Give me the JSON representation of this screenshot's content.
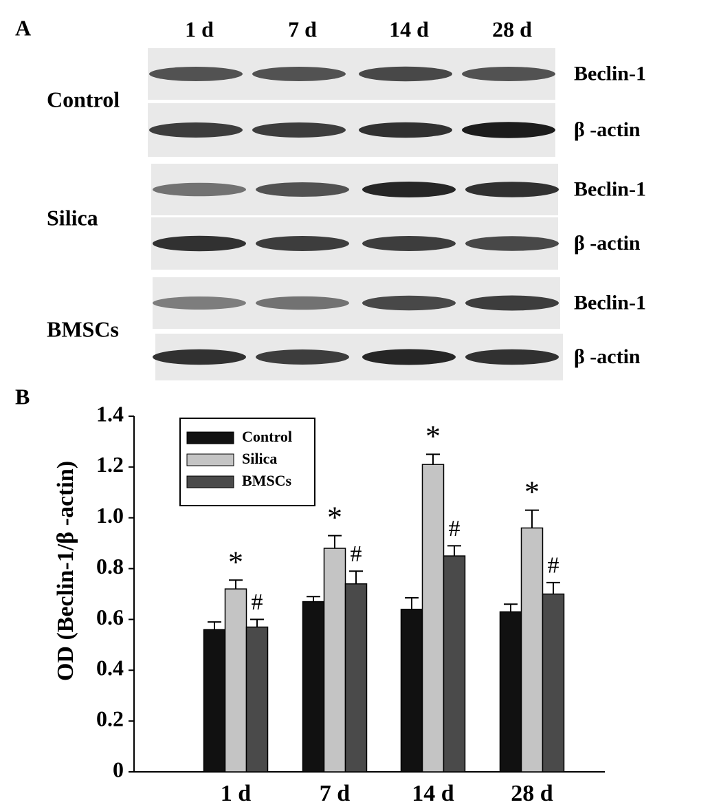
{
  "panel_a": {
    "label": "A",
    "columns": [
      "1 d",
      "7 d",
      "14 d",
      "28 d"
    ],
    "groups": [
      {
        "name": "Control",
        "rows": [
          "Beclin-1",
          "β -actin"
        ]
      },
      {
        "name": "Silica",
        "rows": [
          "Beclin-1",
          "β -actin"
        ]
      },
      {
        "name": "BMSCs",
        "rows": [
          "Beclin-1",
          "β -actin"
        ]
      }
    ]
  },
  "panel_b_label": "B",
  "chart_data": {
    "type": "bar",
    "y_label": "OD (Beclin-1/β -actin)",
    "categories": [
      "1 d",
      "7 d",
      "14 d",
      "28 d"
    ],
    "series": [
      {
        "name": "Control",
        "color": "#111111",
        "values": [
          0.56,
          0.67,
          0.64,
          0.63
        ],
        "errors": [
          0.03,
          0.02,
          0.045,
          0.03
        ]
      },
      {
        "name": "Silica",
        "color": "#c4c4c4",
        "values": [
          0.72,
          0.88,
          1.21,
          0.96
        ],
        "errors": [
          0.035,
          0.05,
          0.04,
          0.07
        ],
        "annotations": [
          "*",
          "*",
          "*",
          "*"
        ]
      },
      {
        "name": "BMSCs",
        "color": "#4a4a4a",
        "values": [
          0.57,
          0.74,
          0.85,
          0.7
        ],
        "errors": [
          0.03,
          0.05,
          0.04,
          0.045
        ],
        "annotations": [
          "#",
          "#",
          "#",
          "#"
        ]
      }
    ],
    "ylim": [
      0,
      1.4
    ],
    "yticks": [
      0,
      0.2,
      0.4,
      0.6,
      0.8,
      {
        "value": 1,
        "label": "1.0"
      },
      1.2,
      1.4
    ],
    "legend": "upper-left"
  }
}
